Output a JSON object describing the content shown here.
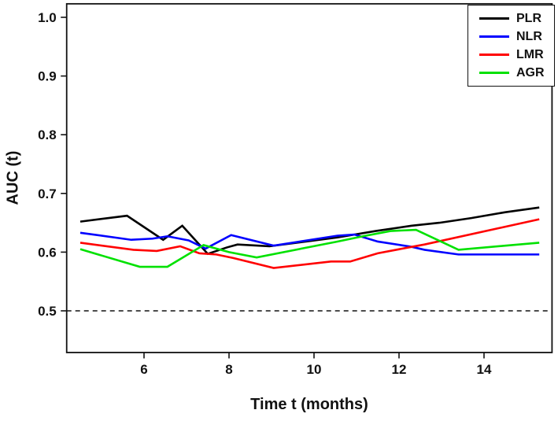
{
  "figure": {
    "background": "#ffffff",
    "frame_color": "#111111",
    "tick_color": "#111111"
  },
  "chart_data": {
    "type": "line",
    "title": "",
    "xlabel": "Time t (months)",
    "ylabel": "AUC (t)",
    "xlim": [
      4.18,
      15.6
    ],
    "ylim": [
      0.429,
      1.023
    ],
    "x_ticks": [
      6,
      8,
      10,
      12,
      14
    ],
    "x_tick_labels": [
      "6",
      "8",
      "10",
      "12",
      "14"
    ],
    "y_ticks": [
      0.5,
      0.6,
      0.7,
      0.8,
      0.9,
      1.0
    ],
    "y_tick_labels": [
      "0.5",
      "0.6",
      "0.7",
      "0.8",
      "0.9",
      "1.0"
    ],
    "grid": false,
    "legend_position": "top-right",
    "reference_line": {
      "y": 0.5,
      "style": "dashed",
      "color": "#111111"
    },
    "series": [
      {
        "name": "PLR",
        "color": "#000000",
        "points": [
          [
            4.5,
            0.652
          ],
          [
            5.6,
            0.662
          ],
          [
            6.45,
            0.621
          ],
          [
            6.9,
            0.645
          ],
          [
            7.5,
            0.597
          ],
          [
            7.95,
            0.608
          ],
          [
            8.2,
            0.613
          ],
          [
            8.95,
            0.61
          ],
          [
            10.55,
            0.625
          ],
          [
            11.45,
            0.636
          ],
          [
            12.3,
            0.645
          ],
          [
            12.95,
            0.65
          ],
          [
            13.7,
            0.658
          ],
          [
            14.5,
            0.668
          ],
          [
            15.3,
            0.676
          ]
        ]
      },
      {
        "name": "NLR",
        "color": "#0000ff",
        "points": [
          [
            4.5,
            0.633
          ],
          [
            5.7,
            0.621
          ],
          [
            6.2,
            0.623
          ],
          [
            6.55,
            0.627
          ],
          [
            7.05,
            0.62
          ],
          [
            7.45,
            0.606
          ],
          [
            8.05,
            0.629
          ],
          [
            9.05,
            0.611
          ],
          [
            10.55,
            0.628
          ],
          [
            10.95,
            0.63
          ],
          [
            11.5,
            0.618
          ],
          [
            12.3,
            0.609
          ],
          [
            12.6,
            0.604
          ],
          [
            13.4,
            0.596
          ],
          [
            15.3,
            0.596
          ]
        ]
      },
      {
        "name": "LMR",
        "color": "#ff0000",
        "points": [
          [
            4.5,
            0.616
          ],
          [
            5.75,
            0.604
          ],
          [
            6.3,
            0.602
          ],
          [
            6.85,
            0.61
          ],
          [
            7.3,
            0.598
          ],
          [
            7.7,
            0.596
          ],
          [
            8.1,
            0.59
          ],
          [
            9.05,
            0.573
          ],
          [
            10.4,
            0.584
          ],
          [
            10.85,
            0.584
          ],
          [
            11.5,
            0.598
          ],
          [
            12.3,
            0.609
          ],
          [
            12.6,
            0.613
          ],
          [
            15.3,
            0.656
          ]
        ]
      },
      {
        "name": "AGR",
        "color": "#00e100",
        "points": [
          [
            4.5,
            0.605
          ],
          [
            5.9,
            0.575
          ],
          [
            6.55,
            0.575
          ],
          [
            7.4,
            0.612
          ],
          [
            8.0,
            0.6
          ],
          [
            8.65,
            0.591
          ],
          [
            10.55,
            0.618
          ],
          [
            11.15,
            0.627
          ],
          [
            11.8,
            0.636
          ],
          [
            12.4,
            0.638
          ],
          [
            13.4,
            0.604
          ],
          [
            14.5,
            0.611
          ],
          [
            15.3,
            0.616
          ]
        ]
      }
    ]
  }
}
